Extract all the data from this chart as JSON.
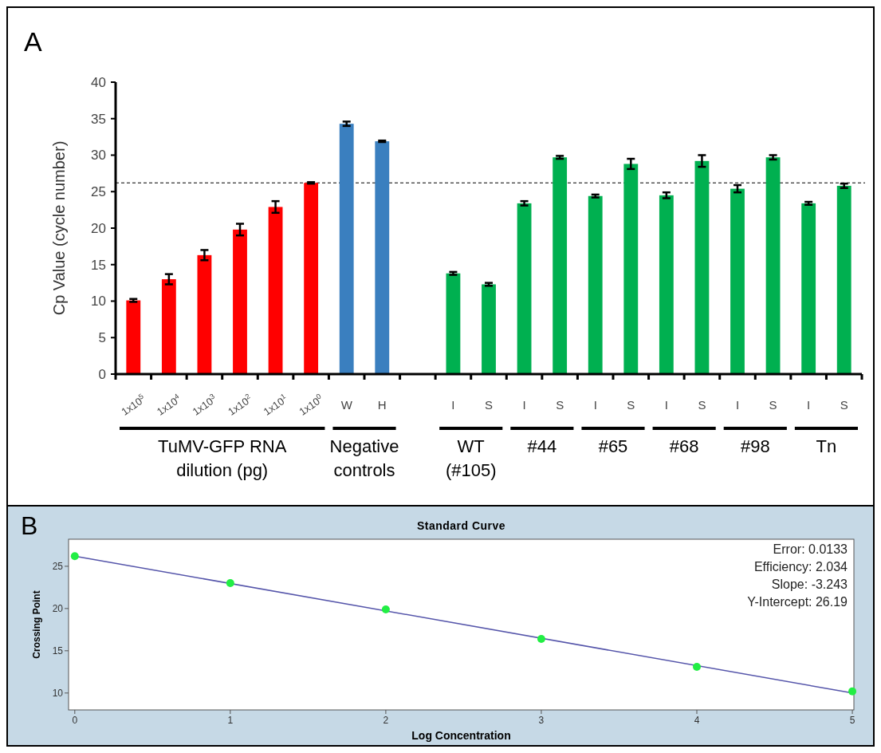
{
  "chart_data": [
    {
      "type": "bar",
      "ylabel": "Cp Value (cycle number)",
      "categories": [
        "1x10$^{5}$",
        "1x10$^{4}$",
        "1x10$^{3}$",
        "1x10$^{2}$",
        "1x10$^{1}$",
        "1x10$^{0}$",
        "W",
        "H",
        null,
        "I",
        "S",
        "I",
        "S",
        "I",
        "S",
        "I",
        "S",
        "I",
        "S",
        "I",
        "S"
      ],
      "values": [
        10.1,
        13.0,
        16.3,
        19.8,
        22.9,
        26.2,
        34.3,
        31.9,
        null,
        13.8,
        12.3,
        23.4,
        29.7,
        24.4,
        28.8,
        24.5,
        29.2,
        25.4,
        29.7,
        23.4,
        25.8
      ],
      "errors": [
        0.2,
        0.7,
        0.7,
        0.8,
        0.8,
        0.1,
        0.3,
        0.1,
        null,
        0.2,
        0.2,
        0.3,
        0.2,
        0.2,
        0.7,
        0.4,
        0.8,
        0.5,
        0.3,
        0.2,
        0.3
      ],
      "colors": [
        "#ff0000",
        "#ff0000",
        "#ff0000",
        "#ff0000",
        "#ff0000",
        "#ff0000",
        "#3a7fbf",
        "#3a7fbf",
        null,
        "#00b050",
        "#00b050",
        "#00b050",
        "#00b050",
        "#00b050",
        "#00b050",
        "#00b050",
        "#00b050",
        "#00b050",
        "#00b050",
        "#00b050",
        "#00b050"
      ],
      "ylim": [
        0,
        40
      ],
      "yticks": [
        0,
        5,
        10,
        15,
        20,
        25,
        30,
        35,
        40
      ],
      "grid": false,
      "ref_lines": [
        {
          "axis": "y",
          "value": 26.2,
          "line_style": "dashed",
          "color": "#000000"
        }
      ],
      "annotations": [
        "A",
        "TuMV-GFP RNA\ndilution (pg)",
        "Negative\ncontrols",
        "WT\n(#105)",
        "#44",
        "#65",
        "#68",
        "#98",
        "Tn"
      ]
    },
    {
      "type": "scatter",
      "title": "Standard Curve",
      "xlabel": "Log Concentration",
      "ylabel": "Crossing Point",
      "xlim": [
        -0.04,
        5.01
      ],
      "ylim": [
        8,
        28.2
      ],
      "xticks": [
        0,
        1,
        2,
        3,
        4,
        5
      ],
      "yticks": [
        10,
        15,
        20,
        25
      ],
      "grid": false,
      "series": [
        {
          "type": "scatter",
          "color": "#22ee44",
          "marker": "circle",
          "x": [
            0,
            1,
            2,
            3,
            4,
            5
          ],
          "values": [
            26.2,
            23.0,
            19.9,
            16.4,
            13.1,
            10.2
          ]
        },
        {
          "type": "line",
          "color": "#5555aa",
          "line_style": "solid",
          "x": [
            0,
            5
          ],
          "values": [
            26.2,
            10.0
          ]
        }
      ],
      "annotations": [
        "B",
        "Error: 0.0133",
        "Efficiency: 2.034",
        "Slope: -3.243",
        "Y-Intercept: 26.19"
      ]
    }
  ]
}
